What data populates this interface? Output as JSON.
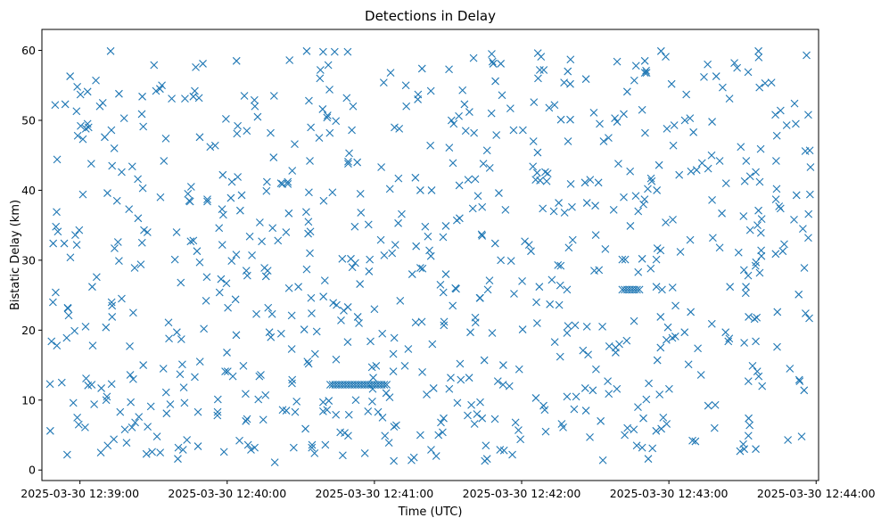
{
  "chart_data": {
    "type": "scatter",
    "title": "Detections in Delay",
    "xlabel": "Time (UTC)",
    "ylabel": "Bistatic Delay (km)",
    "marker": "x",
    "color": "#1f77b4",
    "xlim_seconds": [
      -15.5,
      301
    ],
    "ylim": [
      -1.5,
      63
    ],
    "x_origin": "2025-03-30 12:39:00",
    "x_ticks": [
      {
        "seconds": 0,
        "label": "2025-03-30 12:39:00"
      },
      {
        "seconds": 60,
        "label": "2025-03-30 12:40:00"
      },
      {
        "seconds": 120,
        "label": "2025-03-30 12:41:00"
      },
      {
        "seconds": 180,
        "label": "2025-03-30 12:42:00"
      },
      {
        "seconds": 240,
        "label": "2025-03-30 12:43:00"
      },
      {
        "seconds": 300,
        "label": "2025-03-30 12:44:00"
      }
    ],
    "y_ticks": [
      0,
      10,
      20,
      30,
      40,
      50,
      60
    ],
    "points": []
  }
}
